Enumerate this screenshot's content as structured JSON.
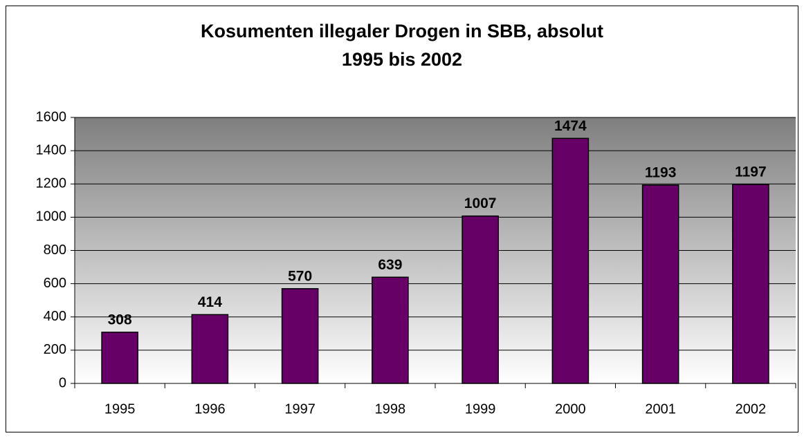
{
  "chart_data": {
    "type": "bar",
    "title": "Kosumenten illegaler Drogen in SBB, absolut",
    "subtitle": "1995 bis 2002",
    "categories": [
      "1995",
      "1996",
      "1997",
      "1998",
      "1999",
      "2000",
      "2001",
      "2002"
    ],
    "values": [
      308,
      414,
      570,
      639,
      1007,
      1474,
      1193,
      1197
    ],
    "color": "#660066",
    "ylim": [
      0,
      1600
    ],
    "yticks": [
      0,
      200,
      400,
      600,
      800,
      1000,
      1200,
      1400,
      1600
    ],
    "grid": true
  }
}
